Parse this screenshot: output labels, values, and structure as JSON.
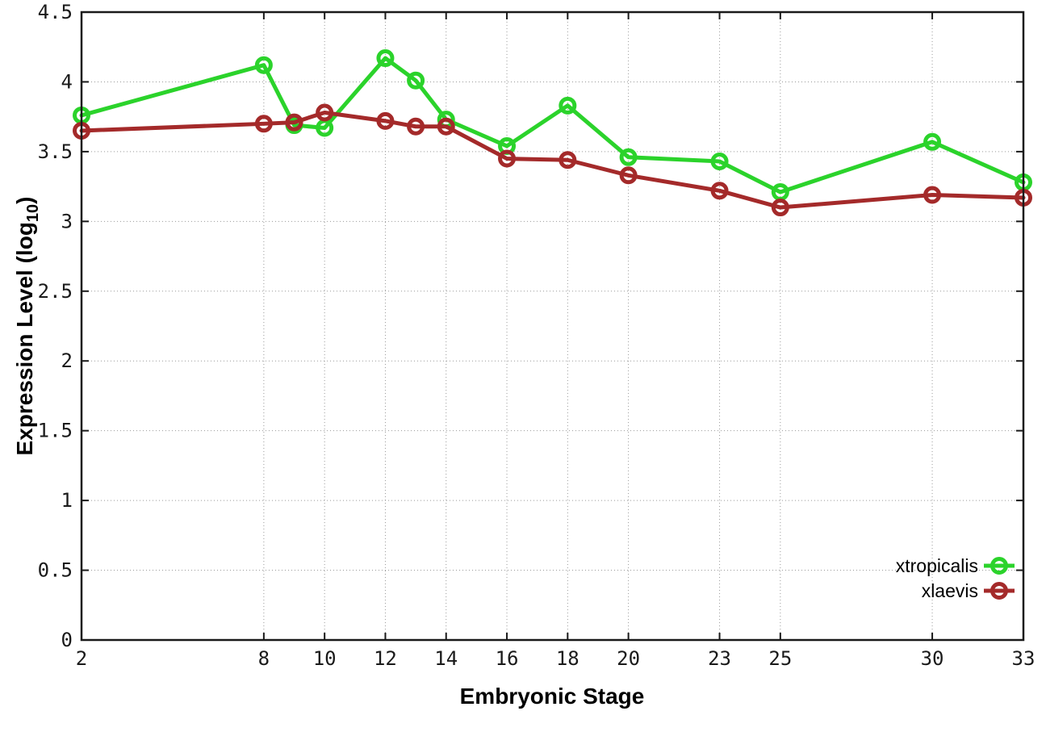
{
  "chart_data": {
    "type": "line",
    "title": "",
    "xlabel": "Embryonic Stage",
    "ylabel": "Expression Level (log10)",
    "ylabel_parts": {
      "main": "Expression Level (log",
      "sub": "10",
      "end": ")"
    },
    "x": [
      2,
      8,
      9,
      10,
      12,
      13,
      14,
      16,
      18,
      20,
      23,
      25,
      30,
      33
    ],
    "series": [
      {
        "name": "xtropicalis",
        "color": "#2bd32b",
        "values": [
          3.76,
          4.12,
          3.69,
          3.67,
          4.17,
          4.01,
          3.73,
          3.54,
          3.83,
          3.46,
          3.43,
          3.21,
          3.57,
          3.28
        ]
      },
      {
        "name": "xlaevis",
        "color": "#a42a2a",
        "values": [
          3.65,
          3.7,
          3.71,
          3.78,
          3.72,
          3.68,
          3.68,
          3.45,
          3.44,
          3.33,
          3.22,
          3.1,
          3.19,
          3.17
        ]
      }
    ],
    "xlim": [
      2,
      33
    ],
    "ylim": [
      0,
      4.5
    ],
    "x_ticks": [
      2,
      8,
      10,
      12,
      14,
      16,
      18,
      20,
      23,
      25,
      30,
      33
    ],
    "x_tick_labels": [
      "2",
      "8",
      "10",
      "12",
      "14",
      "16",
      "18",
      "20",
      "23",
      "25",
      "30",
      "33"
    ],
    "y_ticks": [
      0,
      0.5,
      1,
      1.5,
      2,
      2.5,
      3,
      3.5,
      4,
      4.5
    ],
    "y_tick_labels": [
      "0",
      "0.5",
      "1",
      "1.5",
      "2",
      "2.5",
      "3",
      "3.5",
      "4",
      "4.5"
    ],
    "grid": true,
    "grid_style": "dotted",
    "legend_position": "inside-bottom-right",
    "marker": "open-circle",
    "line_width": 5,
    "border_color": "#1a1a1a",
    "grid_color": "#999999",
    "background_color": "#ffffff"
  }
}
